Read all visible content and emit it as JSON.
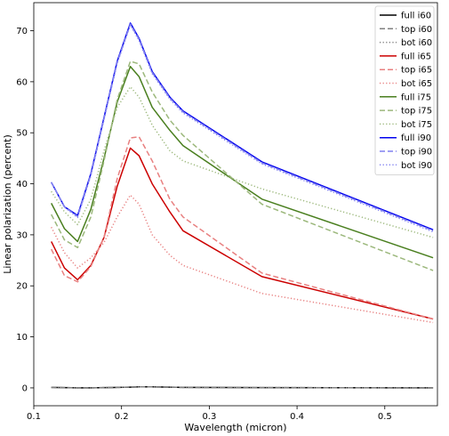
{
  "chart_data": {
    "type": "line",
    "title": "",
    "xlabel": "Wavelength (micron)",
    "ylabel": "Linear polarization (percent)",
    "xlim": [
      0.1,
      0.56
    ],
    "ylim": [
      -3.5,
      75.5
    ],
    "xticks": [
      0.1,
      0.2,
      0.3,
      0.4,
      0.5
    ],
    "xtick_labels": [
      "0.1",
      "0.2",
      "0.3",
      "0.4",
      "0.5"
    ],
    "yticks": [
      0,
      10,
      20,
      30,
      40,
      50,
      60,
      70
    ],
    "ytick_labels": [
      "0",
      "10",
      "20",
      "30",
      "40",
      "50",
      "60",
      "70"
    ],
    "grid": false,
    "legend_position": "top-right",
    "x": [
      0.12,
      0.135,
      0.15,
      0.165,
      0.18,
      0.195,
      0.21,
      0.22,
      0.235,
      0.255,
      0.27,
      0.36,
      0.555
    ],
    "series": [
      {
        "name": "full i60",
        "style": "solid",
        "color": "#000000",
        "values": [
          0.1,
          0.05,
          0.0,
          0.0,
          0.05,
          0.1,
          0.15,
          0.2,
          0.2,
          0.15,
          0.1,
          0.05,
          0.0
        ]
      },
      {
        "name": "top i60",
        "style": "dashed",
        "color": "#808080",
        "values": [
          0.1,
          0.05,
          0.0,
          0.0,
          0.05,
          0.1,
          0.15,
          0.2,
          0.2,
          0.15,
          0.1,
          0.05,
          0.0
        ]
      },
      {
        "name": "bot i60",
        "style": "dotted",
        "color": "#808080",
        "values": [
          0.1,
          0.05,
          0.0,
          0.0,
          0.05,
          0.1,
          0.15,
          0.2,
          0.2,
          0.15,
          0.1,
          0.05,
          0.0
        ]
      },
      {
        "name": "full i65",
        "style": "solid",
        "color": "#cc0000",
        "values": [
          28.7,
          23.5,
          21.2,
          24.0,
          29.5,
          39.5,
          47.0,
          45.5,
          40.0,
          34.5,
          30.8,
          21.8,
          13.5
        ]
      },
      {
        "name": "top i65",
        "style": "dashed",
        "color": "#e88080",
        "values": [
          27.2,
          22.0,
          20.8,
          23.8,
          29.5,
          41.0,
          49.0,
          49.2,
          44.5,
          37.0,
          33.5,
          22.5,
          13.5
        ]
      },
      {
        "name": "bot i65",
        "style": "dotted",
        "color": "#e88080",
        "values": [
          31.5,
          26.5,
          23.5,
          25.5,
          28.5,
          33.5,
          37.8,
          36.0,
          30.0,
          26.0,
          24.0,
          18.5,
          12.8
        ]
      },
      {
        "name": "full i75",
        "style": "solid",
        "color": "#4a7f1f",
        "values": [
          36.2,
          31.2,
          28.7,
          35.0,
          45.0,
          56.0,
          63.0,
          61.0,
          55.0,
          50.5,
          47.5,
          37.0,
          25.5
        ]
      },
      {
        "name": "top i75",
        "style": "dashed",
        "color": "#9cb87c",
        "values": [
          34.0,
          29.0,
          27.5,
          33.5,
          44.5,
          56.5,
          64.0,
          63.5,
          58.0,
          52.5,
          49.5,
          36.0,
          23.0
        ]
      },
      {
        "name": "bot i75",
        "style": "dotted",
        "color": "#9cb87c",
        "values": [
          38.5,
          34.5,
          32.0,
          37.0,
          46.5,
          55.0,
          59.0,
          57.0,
          51.5,
          46.5,
          44.5,
          39.0,
          29.5
        ]
      },
      {
        "name": "full i90",
        "style": "solid",
        "color": "#0000ee",
        "values": [
          40.3,
          35.5,
          33.8,
          42.0,
          53.0,
          64.0,
          71.5,
          68.5,
          62.0,
          57.0,
          54.3,
          44.3,
          31.0
        ]
      },
      {
        "name": "top i90",
        "style": "dashed",
        "color": "#8080f0",
        "values": [
          40.3,
          35.5,
          33.6,
          41.8,
          52.8,
          63.8,
          71.3,
          68.3,
          61.8,
          56.8,
          54.1,
          44.1,
          30.8
        ]
      },
      {
        "name": "bot i90",
        "style": "dotted",
        "color": "#8080f0",
        "values": [
          40.3,
          35.4,
          33.4,
          41.6,
          52.6,
          63.6,
          71.1,
          68.1,
          61.6,
          56.6,
          53.9,
          43.9,
          30.6
        ]
      }
    ]
  }
}
